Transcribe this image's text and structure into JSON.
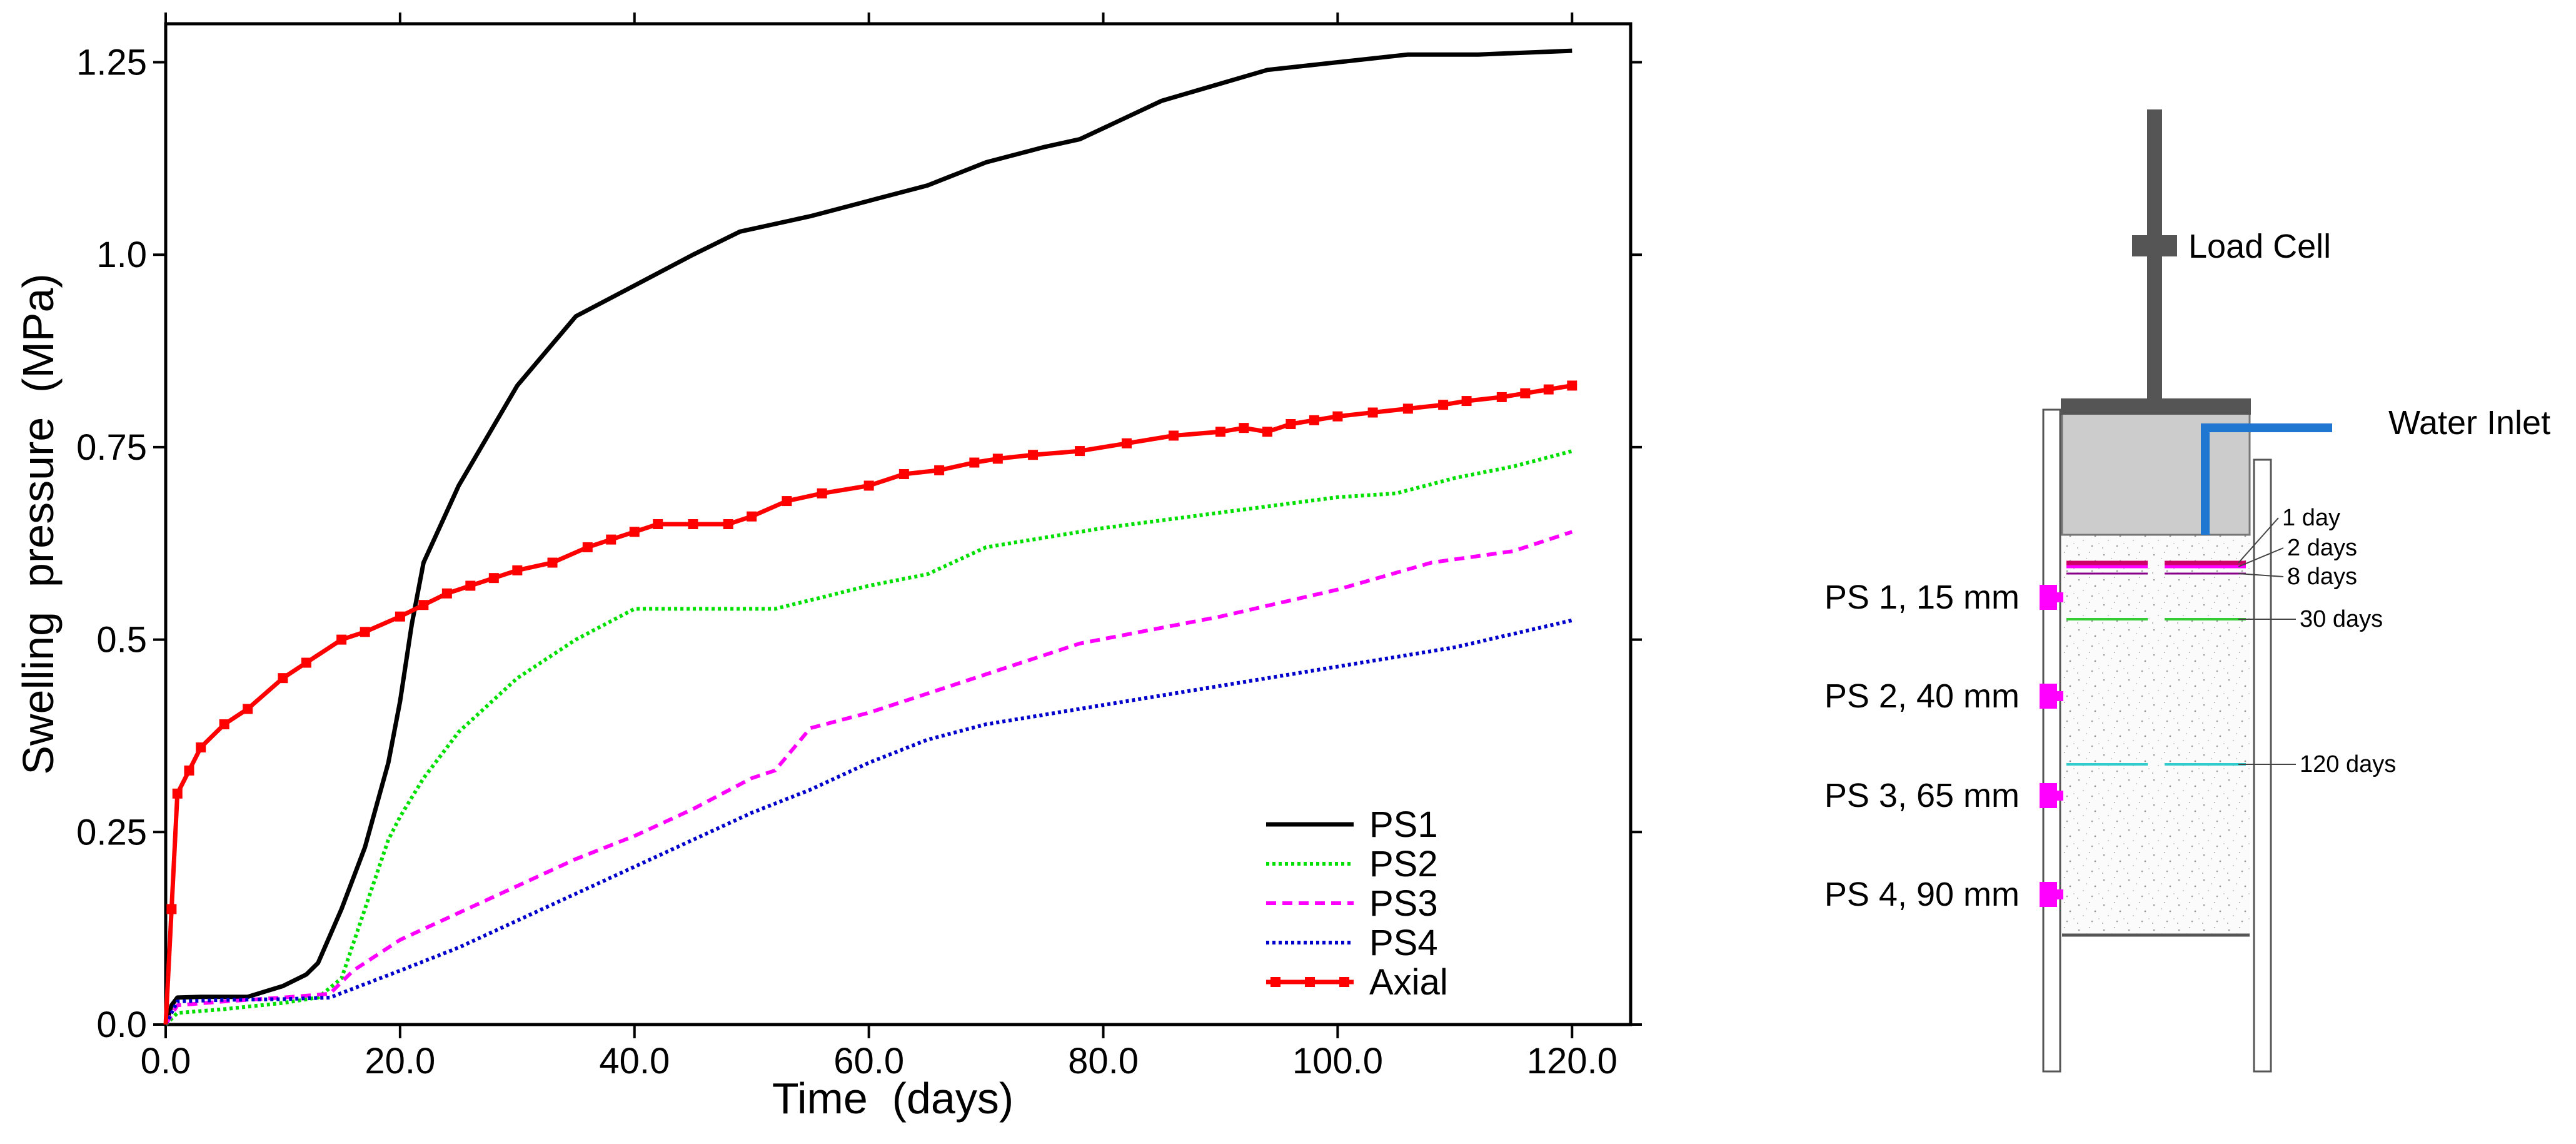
{
  "chart_data": {
    "type": "line",
    "xlabel": "Time  (days)",
    "ylabel": "Swelling  pressure  (MPa)",
    "xlim": [
      0,
      125
    ],
    "ylim": [
      0,
      1.3
    ],
    "xticks": [
      0,
      20,
      40,
      60,
      80,
      100,
      120
    ],
    "xtick_labels": [
      "0.0",
      "20.0",
      "40.0",
      "60.0",
      "80.0",
      "100.0",
      "120.0"
    ],
    "yticks": [
      0,
      0.25,
      0.5,
      0.75,
      1.0,
      1.25
    ],
    "ytick_labels": [
      "0.0",
      "0.25",
      "0.5",
      "0.75",
      "1.0",
      "1.25"
    ],
    "legend_position": "bottom-right",
    "series": [
      {
        "name": "PS1",
        "color": "#000000",
        "style": "solid",
        "x": [
          0,
          0.5,
          1,
          3,
          7,
          10,
          12,
          13,
          15,
          17,
          19,
          20,
          21,
          22,
          25,
          30,
          35,
          40,
          45,
          49,
          55,
          60,
          65,
          70,
          75,
          78,
          85,
          94,
          100,
          106,
          112,
          120
        ],
        "y": [
          0,
          0.025,
          0.035,
          0.036,
          0.036,
          0.05,
          0.065,
          0.08,
          0.15,
          0.23,
          0.34,
          0.42,
          0.52,
          0.6,
          0.7,
          0.83,
          0.92,
          0.96,
          1.0,
          1.03,
          1.05,
          1.07,
          1.09,
          1.12,
          1.14,
          1.15,
          1.2,
          1.24,
          1.25,
          1.26,
          1.26,
          1.265
        ]
      },
      {
        "name": "PS2",
        "color": "#00e000",
        "style": "dotted",
        "x": [
          0,
          1,
          5,
          10,
          13,
          15,
          17,
          19,
          20,
          22,
          25,
          30,
          35,
          40,
          45,
          52,
          60,
          65,
          70,
          80,
          90,
          100,
          105,
          110,
          115,
          120
        ],
        "y": [
          0,
          0.015,
          0.02,
          0.028,
          0.035,
          0.06,
          0.15,
          0.24,
          0.27,
          0.32,
          0.38,
          0.45,
          0.5,
          0.54,
          0.54,
          0.54,
          0.57,
          0.585,
          0.62,
          0.645,
          0.665,
          0.685,
          0.69,
          0.71,
          0.725,
          0.745
        ]
      },
      {
        "name": "PS3",
        "color": "#ff00ff",
        "style": "dashed",
        "x": [
          0,
          1,
          5,
          10,
          14,
          16,
          20,
          25,
          30,
          35,
          40,
          45,
          50,
          52,
          55,
          60,
          65,
          70,
          78,
          90,
          100,
          108,
          115,
          120
        ],
        "y": [
          0,
          0.025,
          0.03,
          0.035,
          0.04,
          0.07,
          0.11,
          0.145,
          0.18,
          0.215,
          0.245,
          0.28,
          0.32,
          0.33,
          0.385,
          0.405,
          0.43,
          0.455,
          0.495,
          0.53,
          0.565,
          0.6,
          0.615,
          0.64
        ]
      },
      {
        "name": "PS4",
        "color": "#0000cc",
        "style": "dotted",
        "x": [
          0,
          1,
          5,
          10,
          14,
          20,
          25,
          30,
          35,
          40,
          45,
          50,
          55,
          60,
          65,
          70,
          80,
          90,
          100,
          110,
          120
        ],
        "y": [
          0,
          0.03,
          0.032,
          0.033,
          0.035,
          0.07,
          0.1,
          0.135,
          0.17,
          0.205,
          0.24,
          0.275,
          0.305,
          0.34,
          0.37,
          0.39,
          0.415,
          0.44,
          0.465,
          0.49,
          0.525
        ]
      },
      {
        "name": "Axial",
        "color": "#ff0000",
        "style": "solid-marker",
        "x": [
          0,
          0.5,
          1,
          2,
          3,
          5,
          7,
          10,
          12,
          15,
          17,
          20,
          22,
          24,
          26,
          28,
          30,
          33,
          36,
          38,
          40,
          42,
          45,
          48,
          50,
          53,
          56,
          60,
          63,
          66,
          69,
          71,
          74,
          78,
          82,
          86,
          90,
          92,
          94,
          96,
          98,
          100,
          103,
          106,
          109,
          111,
          114,
          116,
          118,
          120
        ],
        "y": [
          0,
          0.15,
          0.3,
          0.33,
          0.36,
          0.39,
          0.41,
          0.45,
          0.47,
          0.5,
          0.51,
          0.53,
          0.545,
          0.56,
          0.57,
          0.58,
          0.59,
          0.6,
          0.62,
          0.63,
          0.64,
          0.65,
          0.65,
          0.65,
          0.66,
          0.68,
          0.69,
          0.7,
          0.715,
          0.72,
          0.73,
          0.735,
          0.74,
          0.745,
          0.755,
          0.765,
          0.77,
          0.775,
          0.77,
          0.78,
          0.785,
          0.79,
          0.795,
          0.8,
          0.805,
          0.81,
          0.815,
          0.82,
          0.825,
          0.83
        ]
      }
    ]
  },
  "diagram": {
    "load_cell_label": "Load Cell",
    "water_inlet_label": "Water Inlet",
    "sensors": [
      {
        "label": "PS 1, 15 mm",
        "color": "#ff00ff"
      },
      {
        "label": "PS 2, 40 mm",
        "color": "#ff00ff"
      },
      {
        "label": "PS 3, 65 mm",
        "color": "#ff00ff"
      },
      {
        "label": "PS 4, 90 mm",
        "color": "#ff00ff"
      }
    ],
    "fronts": [
      {
        "label": "1 day",
        "color": "#cc0066"
      },
      {
        "label": "2 days",
        "color": "#ff00ff"
      },
      {
        "label": "8 days",
        "color": "#880088"
      },
      {
        "label": "30 days",
        "color": "#33cc33"
      },
      {
        "label": "120 days",
        "color": "#33cccc"
      }
    ],
    "water_color": "#1f77d2"
  }
}
